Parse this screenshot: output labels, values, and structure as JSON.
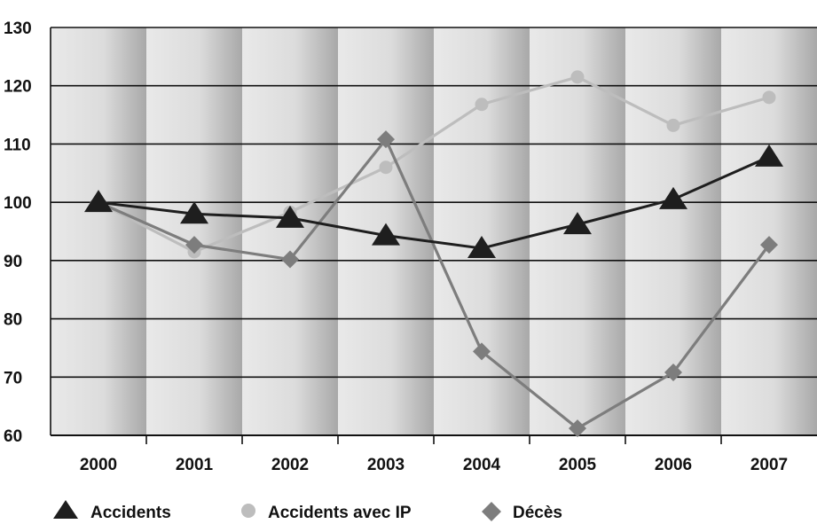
{
  "chart_data": {
    "type": "line",
    "title": "",
    "xlabel": "",
    "ylabel": "",
    "categories": [
      "2000",
      "2001",
      "2002",
      "2003",
      "2004",
      "2005",
      "2006",
      "2007"
    ],
    "y_ticks": [
      "60",
      "70",
      "80",
      "90",
      "100",
      "110",
      "120",
      "130"
    ],
    "ylim": [
      60,
      130
    ],
    "grid": "horizontal",
    "legend_position": "bottom",
    "series": [
      {
        "name": "Accidents",
        "marker": "triangle",
        "color": "#1e1e1e",
        "values": [
          100,
          98,
          97.3,
          94.3,
          92.1,
          96.2,
          100.5,
          107.8
        ]
      },
      {
        "name": "Accidents avec IP",
        "marker": "circle",
        "color": "#bdbdbd",
        "values": [
          100,
          91.5,
          98.3,
          106,
          116.8,
          121.5,
          113.2,
          118
        ]
      },
      {
        "name": "Décès",
        "marker": "diamond",
        "color": "#7d7d7d",
        "values": [
          100,
          92.7,
          90.2,
          110.8,
          74.4,
          61.2,
          70.8,
          92.7
        ]
      }
    ]
  }
}
